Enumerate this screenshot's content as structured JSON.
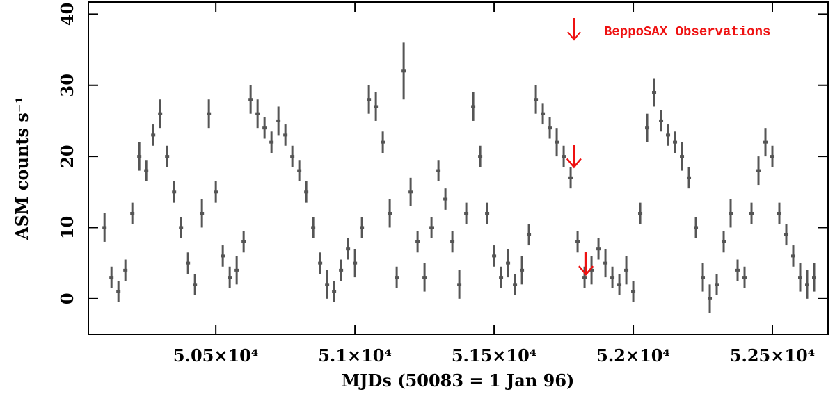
{
  "chart_data": {
    "type": "errorbar",
    "xlabel": "MJDs (50083 = 1 Jan 96)",
    "ylabel": "ASM counts s⁻¹",
    "xlim": [
      50042,
      52700
    ],
    "ylim": [
      -5,
      41.7
    ],
    "xticks": [
      {
        "value": 50500,
        "label": "5.05×10⁴"
      },
      {
        "value": 51000,
        "label": "5.1×10⁴"
      },
      {
        "value": 51500,
        "label": "5.15×10⁴"
      },
      {
        "value": 52000,
        "label": "5.2×10⁴"
      },
      {
        "value": 52500,
        "label": "5.25×10⁴"
      }
    ],
    "yticks": [
      0,
      10,
      20,
      30,
      40
    ],
    "color": "#555555",
    "x": [
      50100,
      50125,
      50150,
      50175,
      50200,
      50225,
      50250,
      50275,
      50300,
      50325,
      50350,
      50375,
      50400,
      50425,
      50450,
      50475,
      50500,
      50525,
      50550,
      50575,
      50600,
      50625,
      50650,
      50675,
      50700,
      50725,
      50750,
      50775,
      50800,
      50825,
      50850,
      50875,
      50900,
      50925,
      50950,
      50975,
      51000,
      51025,
      51050,
      51075,
      51100,
      51125,
      51150,
      51175,
      51200,
      51225,
      51250,
      51275,
      51300,
      51325,
      51350,
      51375,
      51400,
      51425,
      51450,
      51475,
      51500,
      51525,
      51550,
      51575,
      51600,
      51625,
      51650,
      51675,
      51700,
      51725,
      51750,
      51775,
      51800,
      51825,
      51850,
      51875,
      51900,
      51925,
      51950,
      51975,
      52000,
      52025,
      52050,
      52075,
      52100,
      52125,
      52150,
      52175,
      52200,
      52225,
      52250,
      52275,
      52300,
      52325,
      52350,
      52375,
      52400,
      52425,
      52450,
      52475,
      52500,
      52525,
      52550,
      52575,
      52600,
      52625,
      52650
    ],
    "values": [
      10,
      3,
      1,
      4,
      12,
      20,
      18,
      23,
      26,
      20,
      15,
      10,
      5,
      2,
      12,
      26,
      15,
      6,
      3,
      4,
      8,
      28,
      26,
      24,
      22,
      25,
      23,
      20,
      18,
      15,
      10,
      5,
      2,
      1,
      4,
      7,
      5,
      10,
      28,
      27,
      22,
      12,
      3,
      32,
      15,
      8,
      3,
      10,
      18,
      14,
      8,
      2,
      12,
      27,
      20,
      12,
      6,
      3,
      5,
      2,
      4,
      9,
      28,
      26,
      24,
      22,
      20,
      17,
      8,
      3,
      4,
      7,
      5,
      3,
      2,
      4,
      1,
      12,
      24,
      29,
      25,
      23,
      22,
      20,
      17,
      10,
      3,
      0,
      2,
      8,
      12,
      4,
      3,
      12,
      18,
      22,
      20,
      12,
      9,
      6,
      3,
      2,
      3
    ],
    "errors": [
      2,
      1.5,
      1.5,
      1.5,
      1.5,
      2,
      1.5,
      1.5,
      2,
      1.5,
      1.5,
      1.5,
      1.5,
      1.5,
      2,
      2,
      1.5,
      1.5,
      1.5,
      2,
      1.5,
      2,
      2,
      1.5,
      1.5,
      2,
      1.5,
      1.5,
      1.5,
      1.5,
      1.5,
      1.5,
      2,
      1.5,
      1.5,
      1.5,
      2,
      1.5,
      2,
      2,
      1.5,
      2,
      1.5,
      4,
      2,
      1.5,
      2,
      1.5,
      1.5,
      1.5,
      1.5,
      2,
      1.5,
      2,
      1.5,
      1.5,
      1.5,
      1.5,
      2,
      1.5,
      2,
      1.5,
      2,
      1.5,
      1.5,
      2,
      1.5,
      1.5,
      1.5,
      1.5,
      2,
      1.5,
      2,
      1.5,
      1.5,
      2,
      1.5,
      1.5,
      2,
      2,
      1.5,
      1.5,
      1.5,
      2,
      1.5,
      1.5,
      2,
      2,
      1.5,
      1.5,
      2,
      1.5,
      1.5,
      1.5,
      2,
      2,
      1.5,
      1.5,
      1.5,
      1.5,
      2,
      2,
      2
    ],
    "legend": {
      "label": "BeppoSAX Observations",
      "color": "#ee1111"
    },
    "observations": {
      "x": [
        51787,
        51830
      ],
      "y": [
        18.5,
        3.4
      ]
    }
  }
}
